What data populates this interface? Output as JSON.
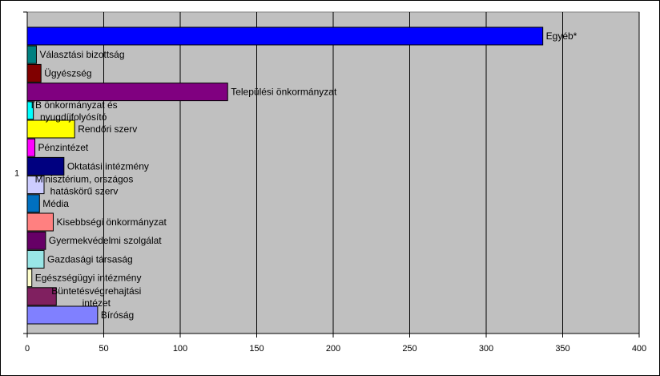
{
  "chart_data": {
    "type": "bar",
    "orientation": "horizontal",
    "group_label": "1",
    "categories": [
      "Egyéb*",
      "Választási bizottság",
      "Ügyészség",
      "Települési önkormányzat",
      "TB önkormányzat és nyugdíjfolyósító",
      "Rendőri szerv",
      "Pénzintézet",
      "Oktatási intézmény",
      "Minisztérium, országos hatáskörű szerv",
      "Média",
      "Kisebbségi önkormányzat",
      "Gyermekvédelmi szolgálat",
      "Gazdasági társaság",
      "Egészségügyi intézmény",
      "Büntetésvégrehajtási intézet",
      "Bíróság"
    ],
    "label_lines": [
      [
        "Egyéb*"
      ],
      [
        "Választási bizottság"
      ],
      [
        "Ügyészség"
      ],
      [
        "Települési önkormányzat"
      ],
      [
        "TB önkormányzat és",
        "nyugdíjfolyósító"
      ],
      [
        "Rendőri szerv"
      ],
      [
        "Pénzintézet"
      ],
      [
        "Oktatási intézmény"
      ],
      [
        "Minisztérium, országos",
        "hatáskörű szerv"
      ],
      [
        "Média"
      ],
      [
        "Kisebbségi önkormányzat"
      ],
      [
        "Gyermekvédelmi szolgálat"
      ],
      [
        "Gazdasági társaság"
      ],
      [
        "Egészségügyi intézmény"
      ],
      [
        "Büntetésvégrehajtási",
        "intézet"
      ],
      [
        "Bíróság"
      ]
    ],
    "values": [
      337,
      6,
      9,
      131,
      4,
      31,
      5,
      24,
      11,
      8,
      17,
      12,
      11,
      3,
      19,
      46
    ],
    "colors": [
      "#0000FF",
      "#008080",
      "#800000",
      "#800080",
      "#00FFFF",
      "#FFFF00",
      "#FF00FF",
      "#000080",
      "#CCCCFF",
      "#0070C0",
      "#FF8080",
      "#660066",
      "#99E6E6",
      "#FFFFCC",
      "#802060",
      "#8080FF"
    ],
    "xlim": [
      0,
      400
    ],
    "xticks": [
      0,
      50,
      100,
      150,
      200,
      250,
      300,
      350,
      400
    ],
    "grid": true,
    "plot_background": "#C0C0C0",
    "title": "",
    "xlabel": "",
    "ylabel": ""
  }
}
